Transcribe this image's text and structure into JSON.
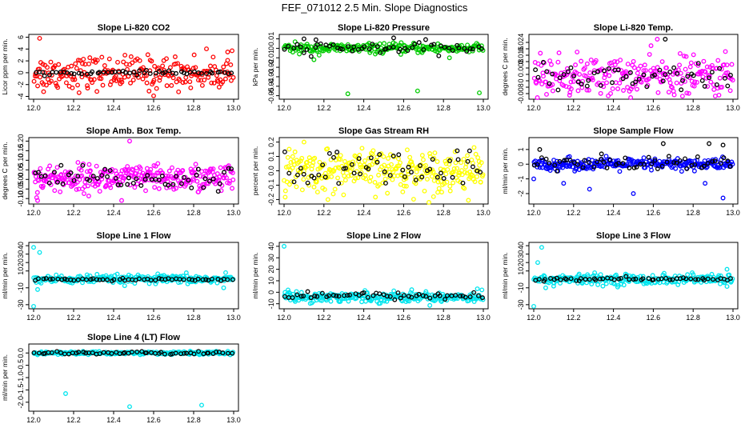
{
  "title": "FEF_071012  2.5 Min. Slope Diagnostics",
  "chart_data": [
    {
      "type": "scatter",
      "title": "Slope Li-820 CO2",
      "ylabel": "Licor ppm per min.",
      "xlim": [
        12.0,
        13.0
      ],
      "ylim": [
        -4.2,
        6.2
      ],
      "yticks": [
        -4,
        -2,
        0,
        2,
        4,
        6
      ],
      "ytick_labels": [
        "-4",
        "-2",
        "0",
        "2",
        "4",
        "6"
      ],
      "xticks": [
        12.0,
        12.2,
        12.4,
        12.6,
        12.8,
        13.0
      ],
      "xtick_labels": [
        "12.0",
        "12.2",
        "12.4",
        "12.6",
        "12.8",
        "13.0"
      ],
      "series": [
        {
          "name": "points",
          "color": "#ff0000",
          "center": 0,
          "spread": 1.4,
          "n": 230,
          "outliers": [
            [
              12.03,
              5.8
            ],
            [
              12.6,
              -3.9
            ],
            [
              12.05,
              -3.2
            ],
            [
              12.97,
              3.5
            ],
            [
              12.27,
              -2.6
            ]
          ]
        },
        {
          "name": "sampled",
          "color": "#000000",
          "center": 0,
          "spread": 0.15,
          "n": 55,
          "outliers": []
        }
      ]
    },
    {
      "type": "scatter",
      "title": "Slope Li-820 Pressure",
      "ylabel": "kPa per min.",
      "xlim": [
        12.0,
        13.0
      ],
      "ylim": [
        -0.052,
        0.013
      ],
      "yticks": [
        -0.05,
        -0.04,
        -0.03,
        -0.02,
        -0.01,
        0,
        0.01
      ],
      "ytick_labels": [
        "-0.05",
        "-0.04",
        "-0.03",
        "-0.02",
        "-0.01",
        "0",
        "0.01"
      ],
      "xticks": [
        12.0,
        12.2,
        12.4,
        12.6,
        12.8,
        13.0
      ],
      "xtick_labels": [
        "12.0",
        "12.2",
        "12.4",
        "12.6",
        "12.8",
        "13.0"
      ],
      "series": [
        {
          "name": "points",
          "color": "#00cc00",
          "center": 0,
          "spread": 0.0025,
          "n": 230,
          "outliers": [
            [
              12.32,
              -0.048
            ],
            [
              12.67,
              -0.045
            ],
            [
              12.98,
              -0.047
            ],
            [
              12.15,
              -0.012
            ],
            [
              12.83,
              -0.01
            ]
          ]
        },
        {
          "name": "sampled",
          "color": "#000000",
          "center": 0,
          "spread": 0.003,
          "n": 55,
          "outliers": [
            [
              12.55,
              0.011
            ],
            [
              12.16,
              0.009
            ],
            [
              12.1,
              0.01
            ]
          ]
        }
      ]
    },
    {
      "type": "scatter",
      "title": "Slope Li-820 Temp.",
      "ylabel": "degrees C per min.",
      "xlim": [
        12.0,
        13.0
      ],
      "ylim": [
        -0.0105,
        0.028
      ],
      "yticks": [
        -0.008,
        -0.004,
        0,
        0.004,
        0.008,
        0.012,
        0.016,
        0.02,
        0.024
      ],
      "ytick_labels": [
        "-0.008",
        "",
        "0",
        "",
        "0.008",
        "",
        "0.016",
        "",
        "0.024"
      ],
      "xticks": [
        12.0,
        12.2,
        12.4,
        12.6,
        12.8,
        13.0
      ],
      "xtick_labels": [
        "12.0",
        "12.2",
        "12.4",
        "12.6",
        "12.8",
        "13.0"
      ],
      "series": [
        {
          "name": "points",
          "color": "#ff00ff",
          "center": 0.003,
          "spread": 0.006,
          "n": 250,
          "outliers": [
            [
              12.18,
              -0.009
            ],
            [
              12.62,
              0.026
            ],
            [
              12.45,
              -0.006
            ]
          ]
        },
        {
          "name": "sampled",
          "color": "#000000",
          "center": 0.003,
          "spread": 0.005,
          "n": 55,
          "outliers": [
            [
              12.66,
              0.026
            ]
          ]
        }
      ]
    },
    {
      "type": "scatter",
      "title": "Slope Amb. Box Temp.",
      "ylabel": "degrees C per min.",
      "xlim": [
        12.0,
        13.0
      ],
      "ylim": [
        -0.12,
        0.21
      ],
      "yticks": [
        -0.1,
        -0.05,
        0,
        0.05,
        0.1,
        0.15,
        0.2
      ],
      "ytick_labels": [
        "-0.10",
        "-0.05",
        "0.00",
        "0.05",
        "0.10",
        "0.15",
        "0.20"
      ],
      "xticks": [
        12.0,
        12.2,
        12.4,
        12.6,
        12.8,
        13.0
      ],
      "xtick_labels": [
        "12.0",
        "12.2",
        "12.4",
        "12.6",
        "12.8",
        "13.0"
      ],
      "series": [
        {
          "name": "points",
          "color": "#ff00ff",
          "center": 0.005,
          "spread": 0.035,
          "n": 300,
          "outliers": [
            [
              12.48,
              0.2
            ],
            [
              12.44,
              -0.11
            ],
            [
              12.02,
              -0.11
            ]
          ]
        },
        {
          "name": "sampled",
          "color": "#000000",
          "center": 0.005,
          "spread": 0.03,
          "n": 55,
          "outliers": []
        }
      ]
    },
    {
      "type": "scatter",
      "title": "Slope Gas Stream RH",
      "ylabel": "percent per min.",
      "xlim": [
        12.0,
        13.0
      ],
      "ylim": [
        -0.22,
        0.22
      ],
      "yticks": [
        -0.2,
        -0.1,
        0,
        0.1,
        0.2
      ],
      "ytick_labels": [
        "-0.2",
        "-0.1",
        "0.0",
        "0.1",
        "0.2"
      ],
      "xticks": [
        12.0,
        12.2,
        12.4,
        12.6,
        12.8,
        13.0
      ],
      "xtick_labels": [
        "12.0",
        "12.2",
        "12.4",
        "12.6",
        "12.8",
        "13.0"
      ],
      "series": [
        {
          "name": "points",
          "color": "#ffff00",
          "center": 0,
          "spread": 0.07,
          "n": 300,
          "outliers": [
            [
              12.22,
              -0.2
            ],
            [
              12.1,
              0.2
            ],
            [
              12.75,
              -0.18
            ]
          ]
        },
        {
          "name": "sampled",
          "color": "#000000",
          "center": 0,
          "spread": 0.07,
          "n": 55,
          "outliers": []
        }
      ]
    },
    {
      "type": "scatter",
      "title": "Slope Sample Flow",
      "ylabel": "ml/min per min.",
      "xlim": [
        12.0,
        13.0
      ],
      "ylim": [
        -2.6,
        1.7
      ],
      "yticks": [
        -2,
        -1,
        0,
        1
      ],
      "ytick_labels": [
        "-2",
        "-1",
        "0",
        "1"
      ],
      "xticks": [
        12.0,
        12.2,
        12.4,
        12.6,
        12.8,
        13.0
      ],
      "xtick_labels": [
        "12.0",
        "12.2",
        "12.4",
        "12.6",
        "12.8",
        "13.0"
      ],
      "series": [
        {
          "name": "points",
          "color": "#0000ff",
          "center": 0,
          "spread": 0.2,
          "n": 260,
          "outliers": [
            [
              12.5,
              -2.0
            ],
            [
              12.95,
              -2.3
            ],
            [
              12.28,
              -1.7
            ],
            [
              12.15,
              -1.3
            ],
            [
              12.86,
              -1.3
            ],
            [
              12.0,
              -1.0
            ]
          ]
        },
        {
          "name": "sampled",
          "color": "#000000",
          "center": 0.05,
          "spread": 0.25,
          "n": 55,
          "outliers": [
            [
              12.95,
              1.3
            ],
            [
              12.65,
              1.4
            ],
            [
              12.88,
              1.4
            ],
            [
              12.03,
              1.0
            ],
            [
              12.34,
              0.7
            ]
          ]
        }
      ]
    },
    {
      "type": "scatter",
      "title": "Slope Line 1 Flow",
      "ylabel": "ml/min per min.",
      "xlim": [
        12.0,
        13.0
      ],
      "ylim": [
        -33,
        42
      ],
      "yticks": [
        -30,
        -10,
        10,
        20,
        30,
        40
      ],
      "ytick_labels": [
        "-30",
        "-10",
        "10",
        "20",
        "30",
        "40"
      ],
      "xticks": [
        12.0,
        12.2,
        12.4,
        12.6,
        12.8,
        13.0
      ],
      "xtick_labels": [
        "12.0",
        "12.2",
        "12.4",
        "12.6",
        "12.8",
        "13.0"
      ],
      "series": [
        {
          "name": "points",
          "color": "#00e5ee",
          "center": 0,
          "spread": 2.5,
          "n": 260,
          "outliers": [
            [
              12.0,
              38
            ],
            [
              12.03,
              32
            ],
            [
              12.0,
              -32
            ],
            [
              12.02,
              -12
            ],
            [
              12.96,
              8
            ],
            [
              12.95,
              -10
            ]
          ]
        },
        {
          "name": "sampled",
          "color": "#000000",
          "center": 0,
          "spread": 0.6,
          "n": 55,
          "outliers": []
        }
      ]
    },
    {
      "type": "scatter",
      "title": "Slope Line 2 Flow",
      "ylabel": "ml/min per min.",
      "xlim": [
        12.0,
        13.0
      ],
      "ylim": [
        -13,
        42
      ],
      "yticks": [
        -10,
        0,
        10,
        20,
        30,
        40
      ],
      "ytick_labels": [
        "-10",
        "0",
        "10",
        "20",
        "30",
        "40"
      ],
      "xticks": [
        12.0,
        12.2,
        12.4,
        12.6,
        12.8,
        13.0
      ],
      "xtick_labels": [
        "12.0",
        "12.2",
        "12.4",
        "12.6",
        "12.8",
        "13.0"
      ],
      "series": [
        {
          "name": "points",
          "color": "#00e5ee",
          "center": -4,
          "spread": 2.2,
          "n": 260,
          "outliers": [
            [
              12.0,
              40
            ],
            [
              12.02,
              2
            ],
            [
              12.97,
              3
            ]
          ]
        },
        {
          "name": "sampled",
          "color": "#000000",
          "center": -3,
          "spread": 1.5,
          "n": 55,
          "outliers": []
        }
      ]
    },
    {
      "type": "scatter",
      "title": "Slope Line 3 Flow",
      "ylabel": "ml/min per min.",
      "xlim": [
        12.0,
        13.0
      ],
      "ylim": [
        -33,
        42
      ],
      "yticks": [
        -30,
        -10,
        10,
        20,
        30,
        40
      ],
      "ytick_labels": [
        "-30",
        "-10",
        "10",
        "20",
        "30",
        "40"
      ],
      "xticks": [
        12.0,
        12.2,
        12.4,
        12.6,
        12.8,
        13.0
      ],
      "xtick_labels": [
        "12.0",
        "12.2",
        "12.4",
        "12.6",
        "12.8",
        "13.0"
      ],
      "series": [
        {
          "name": "points",
          "color": "#00e5ee",
          "center": 0,
          "spread": 3,
          "n": 260,
          "outliers": [
            [
              12.04,
              38
            ],
            [
              12.0,
              -32
            ],
            [
              12.02,
              20
            ],
            [
              12.97,
              12
            ],
            [
              12.1,
              -8
            ],
            [
              12.06,
              -10
            ]
          ]
        },
        {
          "name": "sampled",
          "color": "#000000",
          "center": 0,
          "spread": 1,
          "n": 55,
          "outliers": []
        }
      ]
    },
    {
      "type": "scatter",
      "title": "Slope Line 4 (LT) Flow",
      "ylabel": "ml/min per min.",
      "xlim": [
        12.0,
        13.0
      ],
      "ylim": [
        -2.3,
        0.3
      ],
      "yticks": [
        -2.0,
        -1.5,
        -1.0,
        -0.5,
        0.0
      ],
      "ytick_labels": [
        "-2.0",
        "-1.5",
        "-1.0",
        "-0.5",
        "0.0"
      ],
      "xticks": [
        12.0,
        12.2,
        12.4,
        12.6,
        12.8,
        13.0
      ],
      "xtick_labels": [
        "12.0",
        "12.2",
        "12.4",
        "12.6",
        "12.8",
        "13.0"
      ],
      "series": [
        {
          "name": "points",
          "color": "#00e5ee",
          "center": 0,
          "spread": 0.03,
          "n": 260,
          "outliers": [
            [
              12.16,
              -1.65
            ],
            [
              12.48,
              -2.18
            ],
            [
              12.84,
              -2.12
            ]
          ]
        },
        {
          "name": "sampled",
          "color": "#000000",
          "center": 0,
          "spread": 0.03,
          "n": 55,
          "outliers": []
        }
      ]
    }
  ]
}
